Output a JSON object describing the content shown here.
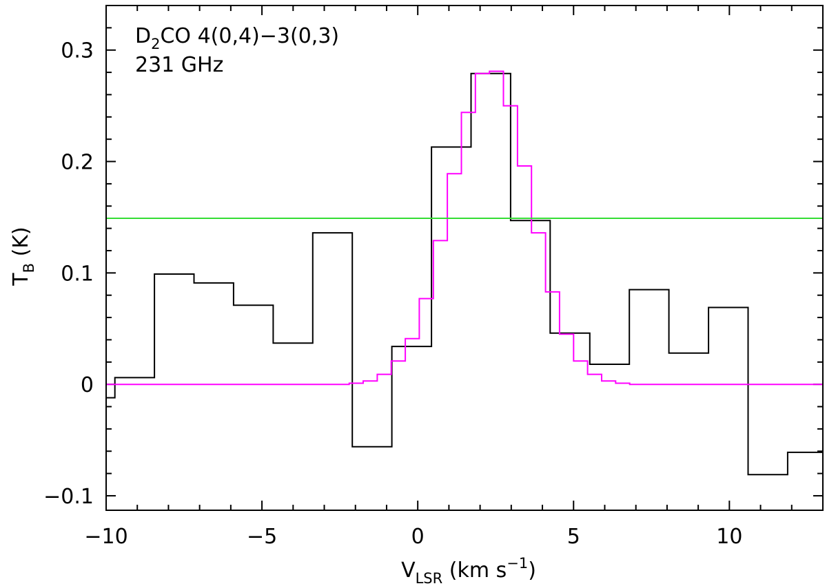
{
  "chart_data": {
    "type": "line",
    "title": "",
    "annotation": {
      "line1_main": "D",
      "line1_sub": "2",
      "line1_rest": "CO 4(0,4)−3(0,3)",
      "line2": "231 GHz"
    },
    "xlabel": {
      "main": "V",
      "sub": "LSR",
      "rest": " (km s",
      "sup": "−1",
      "close": ")"
    },
    "ylabel": {
      "main": "T",
      "sub": "B",
      "rest": " (K)"
    },
    "xlim": [
      -10,
      13
    ],
    "ylim": [
      -0.113,
      0.34
    ],
    "x_ticks": [
      {
        "value": -10,
        "label": "−10"
      },
      {
        "value": -5,
        "label": "−5"
      },
      {
        "value": 0,
        "label": "0"
      },
      {
        "value": 5,
        "label": "5"
      },
      {
        "value": 10,
        "label": "10"
      }
    ],
    "y_ticks": [
      {
        "value": -0.1,
        "label": "−0.1"
      },
      {
        "value": 0,
        "label": "0"
      },
      {
        "value": 0.1,
        "label": "0.1"
      },
      {
        "value": 0.2,
        "label": "0.2"
      },
      {
        "value": 0.3,
        "label": "0.3"
      }
    ],
    "x_minor_step": 1,
    "y_minor_step": 0.02,
    "grid": false,
    "series": [
      {
        "style": "step",
        "color": "#000000",
        "edges": [
          -10,
          -9.72,
          -8.45,
          -7.18,
          -5.91,
          -4.64,
          -3.37,
          -2.1,
          -0.83,
          0.44,
          1.71,
          2.98,
          4.25,
          5.52,
          6.79,
          8.06,
          9.33,
          10.6,
          11.87,
          13.0
        ],
        "values": [
          -0.012,
          0.006,
          0.099,
          0.091,
          0.071,
          0.037,
          0.136,
          -0.056,
          0.034,
          0.213,
          0.279,
          0.147,
          0.046,
          0.018,
          0.085,
          0.028,
          0.069,
          -0.081,
          -0.061
        ]
      },
      {
        "style": "step",
        "color": "#ff00ff",
        "edges": [
          -10.0,
          -2.2,
          -1.75,
          -1.3,
          -0.85,
          -0.4,
          0.05,
          0.5,
          0.95,
          1.4,
          1.85,
          2.3,
          2.75,
          3.2,
          3.65,
          4.1,
          4.55,
          5.0,
          5.45,
          5.9,
          6.35,
          6.8,
          13.0
        ],
        "values": [
          0.0,
          0.001,
          0.003,
          0.009,
          0.021,
          0.041,
          0.077,
          0.129,
          0.189,
          0.244,
          0.279,
          0.281,
          0.25,
          0.196,
          0.136,
          0.083,
          0.045,
          0.021,
          0.009,
          0.003,
          0.001,
          0.0
        ]
      },
      {
        "style": "hline",
        "color": "#33dd33",
        "value": 0.149
      }
    ]
  }
}
